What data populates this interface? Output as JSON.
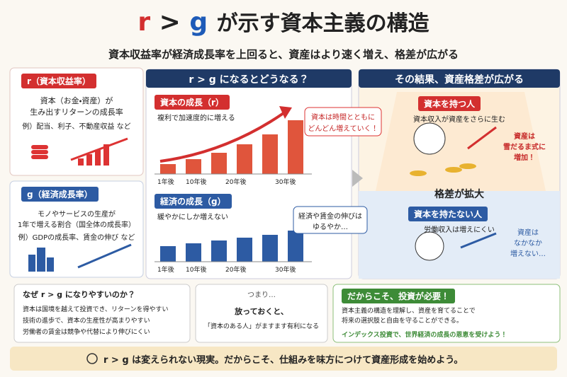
{
  "title": {
    "r": "r",
    "gt": ">",
    "g": "g",
    "rest": "が示す資本主義の構造"
  },
  "subtitle": "資本収益率が経済成長率を上回ると、資産はより速く増え、格差が広がる",
  "r_box": {
    "label": "r（資本収益率）",
    "lines": [
      "資本（お金・資産）が",
      "生み出すリターンの成長率"
    ],
    "example": "例）配当、利子、不動産収益 など"
  },
  "g_box": {
    "label": "g（経済成長率）",
    "lines": [
      "モノやサービスの生産が",
      "1年で増える割合（国全体の成長率）"
    ],
    "example": "例）GDPの成長率、賃金の伸び など"
  },
  "middle": {
    "header": "r > g になるとどうなる？",
    "capital": {
      "label": "資本の成長（r）",
      "desc": "複利で加速度的に増える",
      "bubble": [
        "資本は時間とともに",
        "どんどん増えていく！"
      ],
      "years": [
        "1年後",
        "10年後",
        "20年後",
        "30年後"
      ]
    },
    "economy": {
      "label": "経済の成長（g）",
      "desc": "緩やかにしか増えない",
      "bubble": [
        "経済や賃金の伸びは",
        "ゆるやか…"
      ],
      "years": [
        "1年後",
        "10年後",
        "20年後",
        "30年後"
      ]
    }
  },
  "right": {
    "header": "その結果、資産格差が広がる",
    "rich": {
      "label": "資本を持つ人",
      "desc": "資本収入が資産をさらに生む",
      "note": [
        "資産は",
        "雪だるま式に",
        "増加！"
      ]
    },
    "gap": "格差が拡大",
    "poor": {
      "label": "資本を持たない人",
      "desc": "労働収入は増えにくい",
      "note": [
        "資産は",
        "なかなか",
        "増えない…"
      ]
    }
  },
  "why": {
    "title": "なぜ r > g になりやすいのか？",
    "items": [
      "資本は国境を越えて投資でき、リターンを得やすい",
      "技術の進歩で、資本の生産性が高まりやすい",
      "労働者の賃金は競争や代替により伸びにくい"
    ]
  },
  "summary": {
    "tag": "つまり…",
    "lines": [
      "放っておくと、",
      "「資本のある人」がますます有利になる"
    ]
  },
  "action": {
    "title": "だからこそ、投資が必要！",
    "lines": [
      "資本主義の構造を理解し、資産を育てることで",
      "将来の選択肢と自由を守ることができる。"
    ],
    "cta": "インデックス投資で、世界経済の成長の恩恵を受けよう！"
  },
  "footer": "r > g は変えられない現実。だからこそ、仕組みを味方につけて資産形成を始めよう。"
}
